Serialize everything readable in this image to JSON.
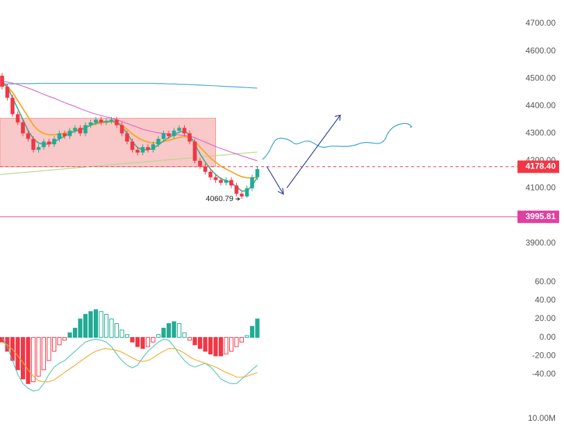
{
  "chart_data": [
    {
      "type": "candlestick",
      "up_color": "#22ab94",
      "down_color": "#f23645",
      "ylim": [
        3788,
        4786
      ],
      "yticks": [
        {
          "value": 4700,
          "label": "4700.00"
        },
        {
          "value": 4600,
          "label": "4600.00"
        },
        {
          "value": 4500,
          "label": "4500.00"
        },
        {
          "value": 4400,
          "label": "4400.00"
        },
        {
          "value": 4300,
          "label": "4300.00"
        },
        {
          "value": 4200,
          "label": "4200.00"
        },
        {
          "value": 4100,
          "label": "4100.00"
        },
        {
          "value": 3900,
          "label": "3900.00"
        }
      ],
      "series": [
        {
          "open": [
            4510,
            4470,
            4430,
            4370,
            4340,
            4300,
            4280,
            4240,
            4250,
            4270,
            4260,
            4280,
            4300,
            4290,
            4310,
            4320,
            4300,
            4330,
            4340,
            4350,
            4340,
            4345,
            4350,
            4330,
            4300,
            4270,
            4240,
            4230,
            4250,
            4240,
            4260,
            4280,
            4300,
            4290,
            4310,
            4320,
            4300,
            4270,
            4200,
            4180,
            4160,
            4140,
            4130,
            4120,
            4130,
            4110,
            4080,
            4070,
            4100,
            4140
          ],
          "high": [
            4520,
            4480,
            4440,
            4380,
            4350,
            4310,
            4290,
            4260,
            4280,
            4280,
            4290,
            4310,
            4310,
            4320,
            4330,
            4330,
            4340,
            4350,
            4360,
            4360,
            4355,
            4360,
            4360,
            4340,
            4310,
            4280,
            4250,
            4260,
            4260,
            4270,
            4290,
            4310,
            4310,
            4320,
            4330,
            4330,
            4310,
            4280,
            4210,
            4190,
            4170,
            4150,
            4140,
            4140,
            4140,
            4120,
            4090,
            4110,
            4150,
            4180
          ],
          "low": [
            4460,
            4420,
            4360,
            4330,
            4290,
            4270,
            4230,
            4230,
            4240,
            4250,
            4250,
            4270,
            4280,
            4280,
            4300,
            4290,
            4290,
            4320,
            4330,
            4330,
            4330,
            4335,
            4320,
            4290,
            4260,
            4230,
            4220,
            4220,
            4230,
            4230,
            4250,
            4270,
            4280,
            4280,
            4300,
            4290,
            4260,
            4190,
            4170,
            4150,
            4130,
            4120,
            4110,
            4110,
            4100,
            4070,
            4060.79,
            4065,
            4090,
            4130
          ],
          "close": [
            4470,
            4430,
            4370,
            4340,
            4300,
            4280,
            4240,
            4250,
            4270,
            4260,
            4280,
            4300,
            4290,
            4310,
            4320,
            4300,
            4330,
            4340,
            4350,
            4340,
            4345,
            4350,
            4330,
            4300,
            4270,
            4240,
            4230,
            4250,
            4240,
            4260,
            4280,
            4300,
            4290,
            4310,
            4320,
            4300,
            4270,
            4200,
            4180,
            4160,
            4140,
            4130,
            4120,
            4130,
            4110,
            4080,
            4070,
            4100,
            4140,
            4170
          ]
        }
      ],
      "lines": [
        {
          "color": "#f5a623",
          "values": [
            4480,
            4470,
            4450,
            4420,
            4390,
            4360,
            4330,
            4310,
            4300,
            4295,
            4295,
            4298,
            4300,
            4305,
            4310,
            4315,
            4322,
            4328,
            4334,
            4338,
            4340,
            4342,
            4340,
            4330,
            4315,
            4298,
            4285,
            4275,
            4268,
            4265,
            4266,
            4270,
            4275,
            4280,
            4285,
            4288,
            4285,
            4270,
            4250,
            4230,
            4210,
            4195,
            4180,
            4170,
            4160,
            4150,
            4142,
            4138,
            4138,
            4140
          ]
        },
        {
          "color": "#4caf8f",
          "values": [
            4490,
            4470,
            4430,
            4390,
            4350,
            4310,
            4280,
            4265,
            4260,
            4262,
            4268,
            4280,
            4290,
            4300,
            4308,
            4312,
            4320,
            4330,
            4338,
            4342,
            4343,
            4345,
            4342,
            4325,
            4300,
            4270,
            4248,
            4240,
            4240,
            4245,
            4258,
            4272,
            4285,
            4295,
            4305,
            4308,
            4295,
            4260,
            4225,
            4195,
            4170,
            4150,
            4135,
            4128,
            4120,
            4105,
            4090,
            4090,
            4110,
            4140
          ]
        },
        {
          "color": "#e05cc8",
          "values": [
            4490,
            4487,
            4483,
            4478,
            4472,
            4465,
            4458,
            4450,
            4442,
            4435,
            4428,
            4420,
            4412,
            4405,
            4398,
            4390,
            4383,
            4376,
            4370,
            4365,
            4360,
            4355,
            4350,
            4343,
            4336,
            4329,
            4322,
            4315,
            4310,
            4306,
            4302,
            4300,
            4298,
            4296,
            4294,
            4292,
            4290,
            4284,
            4276,
            4268,
            4260,
            4252,
            4245,
            4238,
            4231,
            4225,
            4218,
            4212,
            4206,
            4200
          ]
        },
        {
          "color": "#3a9fd6",
          "values": [
            4479,
            4480,
            4480,
            4481,
            4481,
            4481,
            4481,
            4482,
            4482,
            4482,
            4482,
            4482,
            4482,
            4482,
            4482,
            4482,
            4482,
            4482,
            4482,
            4482,
            4482,
            4482,
            4482,
            4482,
            4482,
            4482,
            4482,
            4482,
            4482,
            4482,
            4481,
            4481,
            4480,
            4480,
            4479,
            4479,
            4478,
            4477,
            4476,
            4475,
            4474,
            4473,
            4472,
            4471,
            4470,
            4469,
            4468,
            4467,
            4466,
            4465
          ]
        }
      ],
      "trend_line": {
        "color": "#b5d98a",
        "values": [
          4150,
          4232
        ]
      },
      "box": {
        "color": "#f7b6b6",
        "from_index": 0,
        "to_index": 41,
        "top": 4355,
        "bottom": 4178
      },
      "hlines": [
        {
          "value": 4178.4,
          "label": "4178.40",
          "color": "#f23645",
          "dashed": true
        },
        {
          "value": 3995.81,
          "color": "#e040a0",
          "dashed": false
        }
      ]
    },
    {
      "type": "macd",
      "ylim": [
        -70,
        65
      ],
      "yticks": [
        {
          "value": 60,
          "label": "60.00"
        },
        {
          "value": 40,
          "label": "40.00"
        },
        {
          "value": 20,
          "label": "20.00"
        },
        {
          "value": 0,
          "label": "0.00"
        },
        {
          "value": -20,
          "label": "-20.00"
        },
        {
          "value": -40,
          "label": "-40.00"
        }
      ],
      "up_color": "#22ab94",
      "down_color": "#f23645",
      "values": [
        -5,
        -15,
        -25,
        -35,
        -45,
        -50,
        -48,
        -42,
        -35,
        -25,
        -15,
        -8,
        -3,
        5,
        10,
        20,
        25,
        28,
        30,
        28,
        25,
        20,
        15,
        8,
        3,
        -5,
        -10,
        -12,
        -10,
        -5,
        3,
        10,
        15,
        17,
        15,
        5,
        -3,
        -8,
        -12,
        -15,
        -18,
        -20,
        -20,
        -18,
        -15,
        -10,
        -5,
        2,
        12,
        20
      ],
      "lines": [
        {
          "color": "#4fc3b5",
          "values": [
            0,
            -10,
            -25,
            -40,
            -50,
            -55,
            -58,
            -57,
            -50,
            -40,
            -32,
            -28,
            -25,
            -20,
            -15,
            -10,
            -5,
            -3,
            -2,
            -3,
            -5,
            -10,
            -18,
            -25,
            -30,
            -33,
            -30,
            -22,
            -15,
            -10,
            -5,
            -2,
            -3,
            -10,
            -18,
            -25,
            -30,
            -32,
            -30,
            -28,
            -32,
            -38,
            -45,
            -48,
            -50,
            -50,
            -45,
            -40,
            -35,
            -30
          ]
        },
        {
          "color": "#f5a623",
          "values": [
            -5,
            -8,
            -13,
            -20,
            -27,
            -35,
            -42,
            -47,
            -48,
            -48,
            -46,
            -42,
            -38,
            -34,
            -30,
            -26,
            -22,
            -18,
            -15,
            -13,
            -12,
            -13,
            -14,
            -16,
            -19,
            -22,
            -25,
            -26,
            -25,
            -22,
            -18,
            -15,
            -12,
            -12,
            -14,
            -17,
            -21,
            -24,
            -26,
            -28,
            -30,
            -32,
            -35,
            -38,
            -40,
            -43,
            -43,
            -42,
            -40,
            -38
          ]
        }
      ]
    },
    {
      "type": "volume",
      "yticks": [
        {
          "value": 10000000,
          "label": "10.00M"
        }
      ]
    }
  ]
}
